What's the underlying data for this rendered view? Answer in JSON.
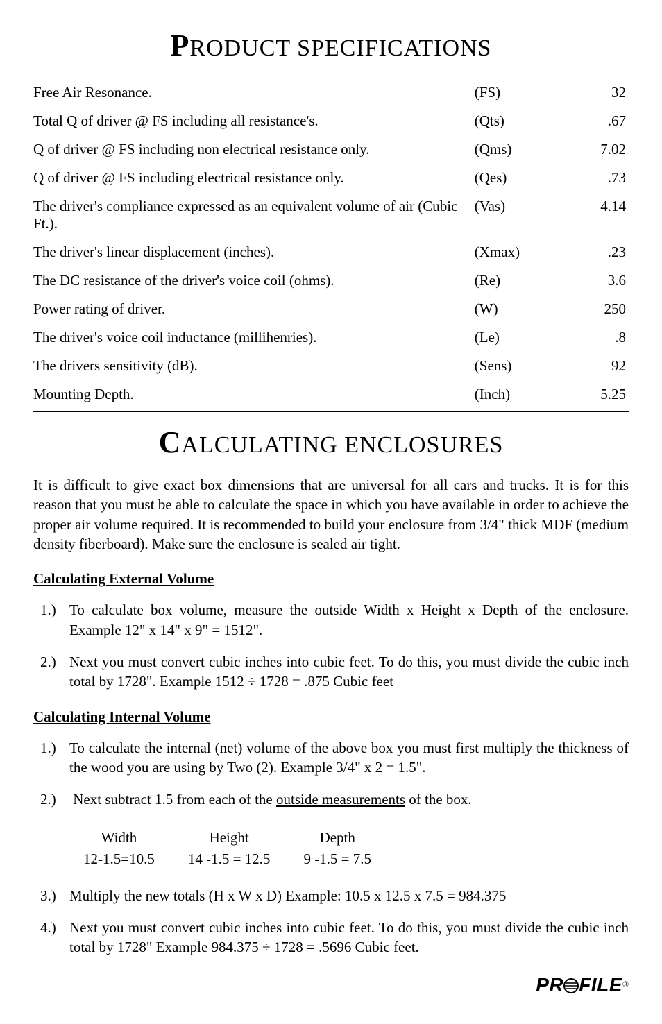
{
  "title1_big": "P",
  "title1_rest": "RODUCT SPECIFICATIONS",
  "specs": [
    {
      "desc": "Free Air Resonance.",
      "sym": "(FS)",
      "val": "32"
    },
    {
      "desc": "Total Q of driver @ FS including all resistance's.",
      "sym": "(Qts)",
      "val": ".67"
    },
    {
      "desc": "Q of driver @ FS including non electrical resistance only.",
      "sym": "(Qms)",
      "val": "7.02"
    },
    {
      "desc": "Q of driver @ FS including electrical resistance only.",
      "sym": "(Qes)",
      "val": ".73"
    },
    {
      "desc": "The driver's compliance expressed as an equivalent volume of air (Cubic Ft.).",
      "sym": "(Vas)",
      "val": "4.14"
    },
    {
      "desc": "The driver's linear displacement (inches).",
      "sym": "(Xmax)",
      "val": ".23"
    },
    {
      "desc": "The DC resistance of the driver's voice coil (ohms).",
      "sym": "(Re)",
      "val": "3.6"
    },
    {
      "desc": "Power rating of driver.",
      "sym": "(W)",
      "val": "250"
    },
    {
      "desc": "The driver's voice coil inductance (millihenries).",
      "sym": "(Le)",
      "val": ".8"
    },
    {
      "desc": "The drivers sensitivity (dB).",
      "sym": "(Sens)",
      "val": "92"
    },
    {
      "desc": "Mounting Depth.",
      "sym": "(Inch)",
      "val": "5.25"
    }
  ],
  "title2_big": "C",
  "title2_rest": "ALCULATING ENCLOSURES",
  "intro_para": "It is difficult to give exact box dimensions that are universal for all cars and trucks. It is for this reason that you must be able to calculate the space in which you have available in order to achieve the proper air volume required.  It is recommended to build your enclosure from 3/4\" thick MDF (medium density fiberboard). Make sure the enclosure is sealed air tight.",
  "ext_head": "Calculating External Volume",
  "ext_items": [
    "To calculate box volume, measure the outside Width x Height x Depth of the enclosure. Example 12\" x 14\" x 9\" = 1512\".",
    "Next you must convert cubic inches into cubic feet. To do this, you must divide the cubic inch total by 1728\". Example 1512 ÷ 1728 = .875 Cubic feet"
  ],
  "int_head": "Calculating Internal Volume",
  "int_item1": "To calculate the internal (net) volume of the above box you must first multiply the thickness of the wood you are using by Two (2). Example 3/4\" x 2 = 1.5\".",
  "int_item2_pre": "Next subtract 1.5 from each of the ",
  "int_item2_u": "outside measurements",
  "int_item2_post": " of the box.",
  "measure": {
    "headers": [
      "Width",
      "Height",
      "Depth"
    ],
    "values": [
      "12-1.5=10.5",
      "14 -1.5 = 12.5",
      "9 -1.5 = 7.5"
    ]
  },
  "int_item3": "Multiply the new totals (H x W x D) Example: 10.5 x 12.5 x 7.5 = 984.375",
  "int_item4": "Next you must convert cubic inches into cubic feet. To do this, you must divide the cubic inch total by 1728\" Example 984.375 ÷ 1728 = .5696 Cubic feet.",
  "logo_pr": "PR",
  "logo_file": "FILE",
  "logo_reg": "®"
}
